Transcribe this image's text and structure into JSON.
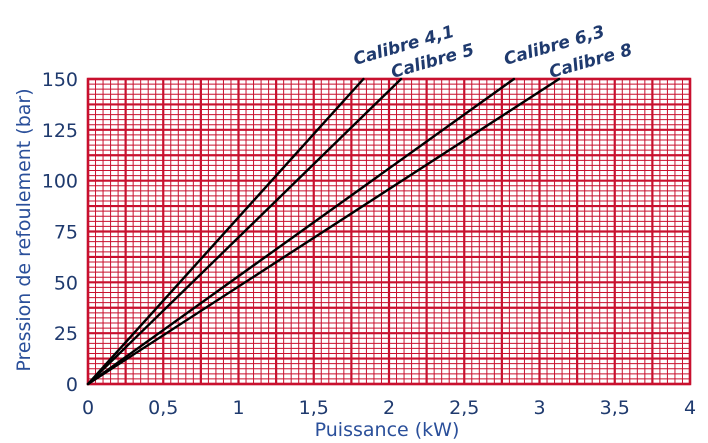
{
  "chart_data": {
    "type": "line",
    "title": "",
    "xlabel": "Puissance (kW)",
    "ylabel": "Pression de refoulement (bar)",
    "xlim": [
      0,
      4
    ],
    "ylim": [
      0,
      150
    ],
    "x_ticks": [
      "0",
      "0,5",
      "1",
      "1,5",
      "2",
      "2,5",
      "3",
      "3,5",
      "4"
    ],
    "y_ticks": [
      "0",
      "25",
      "50",
      "75",
      "100",
      "125",
      "150"
    ],
    "grid": true,
    "grid_color": "#c8102e",
    "line_color": "#000000",
    "series": [
      {
        "name": "Calibre 4,1",
        "x": [
          0,
          1.83
        ],
        "y": [
          0,
          150
        ]
      },
      {
        "name": "Calibre 5",
        "x": [
          0,
          2.08
        ],
        "y": [
          0,
          150
        ]
      },
      {
        "name": "Calibre 6,3",
        "x": [
          0,
          2.83
        ],
        "y": [
          0,
          150
        ]
      },
      {
        "name": "Calibre 8",
        "x": [
          0,
          3.13
        ],
        "y": [
          0,
          150
        ]
      }
    ]
  }
}
